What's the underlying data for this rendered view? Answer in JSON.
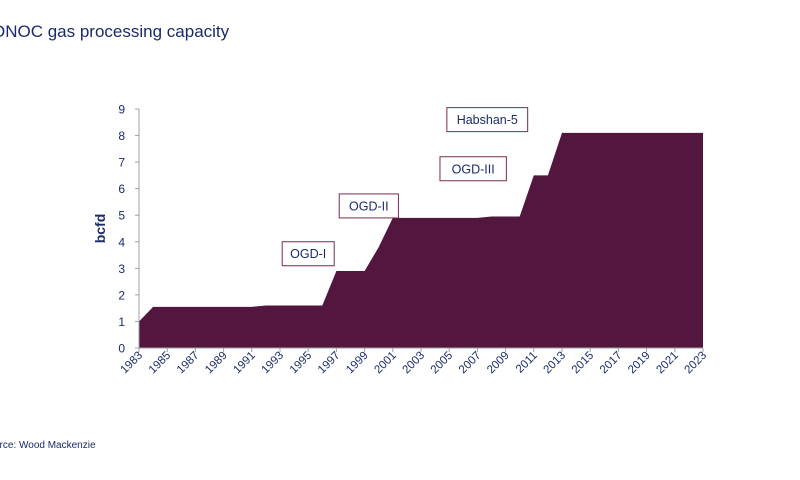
{
  "title": "ONOC gas processing capacity",
  "source": "urce: Wood Mackenzie",
  "colors": {
    "area": "#52163f",
    "text": "#1a2a6c",
    "annotation_border": "#7a2a50"
  },
  "chart_data": {
    "type": "area",
    "title": "ONOC gas processing capacity",
    "xlabel": "",
    "ylabel": "bcfd",
    "ylim": [
      0,
      9
    ],
    "yticks": [
      "0",
      "1",
      "2",
      "3",
      "4",
      "5",
      "6",
      "7",
      "8",
      "9"
    ],
    "xlim": [
      1983,
      2023
    ],
    "xticks": [
      "1983",
      "1985",
      "1987",
      "1989",
      "1991",
      "1993",
      "1995",
      "1997",
      "1999",
      "2001",
      "2003",
      "2005",
      "2007",
      "2009",
      "2011",
      "2013",
      "2015",
      "2017",
      "2019",
      "2021",
      "2023"
    ],
    "grid": false,
    "legend": "none",
    "x": [
      1983,
      1984,
      1991,
      1992,
      1996,
      1997,
      1998,
      1999,
      2000,
      2001,
      2007,
      2008,
      2010,
      2011,
      2012,
      2013,
      2023
    ],
    "y": [
      1.0,
      1.55,
      1.55,
      1.6,
      1.6,
      2.9,
      2.9,
      2.9,
      3.8,
      4.9,
      4.9,
      4.95,
      4.95,
      6.5,
      6.5,
      8.1,
      8.1
    ],
    "annotations": [
      {
        "text": "OGD-I",
        "x": 1995.0,
        "y": 3.55
      },
      {
        "text": "OGD-II",
        "x": 1999.3,
        "y": 5.35
      },
      {
        "text": "OGD-III",
        "x": 2006.7,
        "y": 6.75
      },
      {
        "text": "Habshan-5",
        "x": 2007.7,
        "y": 8.6
      }
    ]
  }
}
